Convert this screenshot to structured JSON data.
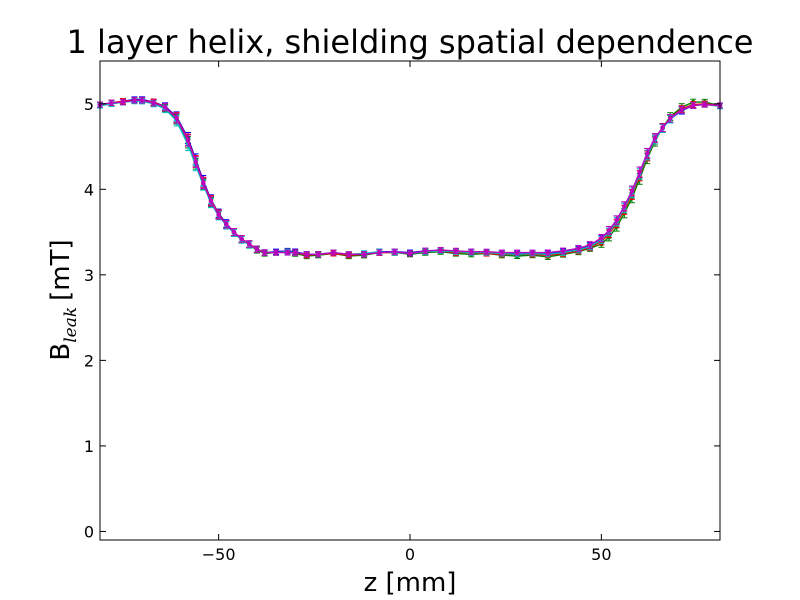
{
  "chart_data": {
    "type": "line",
    "title": "1 layer helix, shielding spatial dependence",
    "xlabel": "z [mm]",
    "ylabel": {
      "main": "B",
      "subscript": "leak",
      "unit": "[mT]"
    },
    "xlim": [
      -81,
      81
    ],
    "ylim": [
      -0.1,
      5.5
    ],
    "xticks": [
      -50,
      0,
      50
    ],
    "xtick_labels": [
      "−50",
      "0",
      "50"
    ],
    "yticks": [
      0,
      1,
      2,
      3,
      4,
      5
    ],
    "ytick_labels": [
      "0",
      "1",
      "2",
      "3",
      "4",
      "5"
    ],
    "grid": false,
    "legend": "none",
    "error_bars": true,
    "series": [
      {
        "color": "#0000ff",
        "marker": "dot",
        "x": [
          -81,
          -78,
          -75,
          -72,
          -70,
          -67,
          -64,
          -61,
          -58,
          -56,
          -54,
          -52,
          -50,
          -48,
          -46,
          -44,
          -42,
          -40,
          -38,
          -35,
          -32,
          -30,
          -27,
          -24,
          -20,
          -16,
          -12,
          -8,
          -4,
          0,
          4,
          8,
          12,
          16,
          20,
          24,
          28,
          32,
          36,
          40,
          44,
          47,
          50,
          52,
          54,
          56,
          58,
          60,
          62,
          64,
          66,
          68,
          71,
          74,
          77,
          81
        ],
        "y": [
          4.99,
          5.01,
          5.03,
          5.05,
          5.05,
          5.02,
          4.97,
          4.85,
          4.6,
          4.35,
          4.1,
          3.88,
          3.72,
          3.6,
          3.5,
          3.42,
          3.36,
          3.3,
          3.26,
          3.27,
          3.28,
          3.27,
          3.24,
          3.24,
          3.26,
          3.23,
          3.24,
          3.27,
          3.27,
          3.26,
          3.28,
          3.28,
          3.27,
          3.27,
          3.26,
          3.25,
          3.25,
          3.25,
          3.25,
          3.27,
          3.3,
          3.34,
          3.42,
          3.52,
          3.64,
          3.8,
          3.98,
          4.2,
          4.42,
          4.6,
          4.72,
          4.82,
          4.92,
          4.98,
          5.0,
          4.98
        ]
      },
      {
        "color": "#008000",
        "marker": "dot",
        "x": [
          -81,
          -78,
          -75,
          -72,
          -70,
          -67,
          -64,
          -61,
          -58,
          -56,
          -54,
          -52,
          -50,
          -48,
          -46,
          -44,
          -42,
          -40,
          -38,
          -35,
          -32,
          -30,
          -27,
          -24,
          -20,
          -16,
          -12,
          -8,
          -4,
          0,
          4,
          8,
          12,
          16,
          20,
          24,
          28,
          32,
          36,
          40,
          44,
          47,
          50,
          52,
          54,
          56,
          58,
          60,
          62,
          64,
          66,
          68,
          71,
          74,
          77,
          81
        ],
        "y": [
          4.98,
          5.0,
          5.02,
          5.04,
          5.04,
          5.01,
          4.95,
          4.82,
          4.55,
          4.3,
          4.06,
          3.85,
          3.7,
          3.58,
          3.49,
          3.41,
          3.35,
          3.29,
          3.25,
          3.26,
          3.27,
          3.25,
          3.22,
          3.23,
          3.25,
          3.22,
          3.23,
          3.26,
          3.26,
          3.24,
          3.26,
          3.27,
          3.25,
          3.24,
          3.25,
          3.23,
          3.22,
          3.23,
          3.21,
          3.24,
          3.27,
          3.31,
          3.36,
          3.44,
          3.56,
          3.72,
          3.9,
          4.12,
          4.36,
          4.56,
          4.72,
          4.85,
          4.96,
          5.02,
          5.02,
          4.98
        ]
      },
      {
        "color": "#ff0000",
        "marker": "dot",
        "x": [
          -81,
          -78,
          -75,
          -72,
          -70,
          -67,
          -64,
          -61,
          -58,
          -56,
          -54,
          -52,
          -50,
          -48,
          -46,
          -44,
          -42,
          -40,
          -38,
          -35,
          -32,
          -30,
          -27,
          -24,
          -20,
          -16,
          -12,
          -8,
          -4,
          0,
          4,
          8,
          12,
          16,
          20,
          24,
          28,
          32,
          36,
          40,
          44,
          47,
          50,
          52,
          54,
          56,
          58,
          60,
          62,
          64,
          66,
          68,
          71,
          74,
          77,
          81
        ],
        "y": [
          4.99,
          5.01,
          5.03,
          5.04,
          5.04,
          5.02,
          4.96,
          4.84,
          4.58,
          4.33,
          4.08,
          3.87,
          3.71,
          3.59,
          3.5,
          3.42,
          3.36,
          3.3,
          3.26,
          3.26,
          3.27,
          3.26,
          3.23,
          3.24,
          3.25,
          3.23,
          3.24,
          3.26,
          3.26,
          3.25,
          3.27,
          3.28,
          3.26,
          3.26,
          3.25,
          3.24,
          3.24,
          3.24,
          3.23,
          3.25,
          3.28,
          3.32,
          3.39,
          3.48,
          3.6,
          3.76,
          3.94,
          4.16,
          4.39,
          4.58,
          4.72,
          4.83,
          4.94,
          4.99,
          5.0,
          4.98
        ]
      },
      {
        "color": "#00bfbf",
        "marker": "dot",
        "x": [
          -81,
          -78,
          -75,
          -72,
          -70,
          -67,
          -64,
          -61,
          -58,
          -56,
          -54,
          -52,
          -50,
          -48,
          -46,
          -44,
          -42,
          -40,
          -38,
          -35,
          -32,
          -30,
          -27,
          -24,
          -20,
          -16,
          -12,
          -8,
          -4,
          0,
          4,
          8,
          12,
          16,
          20,
          24,
          28,
          32,
          36,
          40,
          44,
          47,
          50,
          52,
          54,
          56,
          58,
          60,
          62,
          64,
          66,
          68,
          71,
          74,
          77,
          81
        ],
        "y": [
          4.98,
          5.0,
          5.02,
          5.03,
          5.03,
          5.0,
          4.94,
          4.8,
          4.52,
          4.28,
          4.05,
          3.84,
          3.69,
          3.58,
          3.49,
          3.41,
          3.35,
          3.3,
          3.26,
          3.26,
          3.27,
          3.26,
          3.24,
          3.24,
          3.26,
          3.24,
          3.25,
          3.27,
          3.26,
          3.25,
          3.27,
          3.28,
          3.27,
          3.26,
          3.26,
          3.25,
          3.24,
          3.25,
          3.24,
          3.26,
          3.29,
          3.33,
          3.41,
          3.5,
          3.62,
          3.78,
          3.96,
          4.18,
          4.4,
          4.58,
          4.71,
          4.82,
          4.93,
          4.98,
          4.99,
          4.97
        ]
      },
      {
        "color": "#bf00bf",
        "marker": "dot",
        "x": [
          -81,
          -78,
          -75,
          -72,
          -70,
          -67,
          -64,
          -61,
          -58,
          -56,
          -54,
          -52,
          -50,
          -48,
          -46,
          -44,
          -42,
          -40,
          -38,
          -35,
          -32,
          -30,
          -27,
          -24,
          -20,
          -16,
          -12,
          -8,
          -4,
          0,
          4,
          8,
          12,
          16,
          20,
          24,
          28,
          32,
          36,
          40,
          44,
          47,
          50,
          52,
          54,
          56,
          58,
          60,
          62,
          64,
          66,
          68,
          71,
          74,
          77,
          81
        ],
        "y": [
          4.99,
          5.01,
          5.02,
          5.04,
          5.04,
          5.01,
          4.96,
          4.83,
          4.57,
          4.32,
          4.07,
          3.86,
          3.7,
          3.59,
          3.5,
          3.42,
          3.36,
          3.3,
          3.26,
          3.26,
          3.26,
          3.26,
          3.24,
          3.24,
          3.26,
          3.24,
          3.24,
          3.26,
          3.27,
          3.25,
          3.28,
          3.29,
          3.28,
          3.27,
          3.27,
          3.26,
          3.26,
          3.26,
          3.26,
          3.28,
          3.31,
          3.35,
          3.43,
          3.52,
          3.64,
          3.8,
          3.98,
          4.2,
          4.42,
          4.6,
          4.72,
          4.83,
          4.93,
          4.98,
          4.99,
          4.98
        ]
      }
    ]
  }
}
